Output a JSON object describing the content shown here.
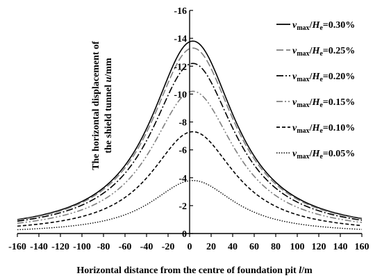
{
  "chart_data": {
    "type": "line",
    "xlabel_parts": [
      "Horizontal distance from the centre of foundation pit ",
      "l",
      "/m"
    ],
    "ylabel_line1": "The horizontal displacement of",
    "ylabel_line2_parts": [
      "the shield tunnel ",
      "u",
      "/mm"
    ],
    "xlim": [
      -160,
      160
    ],
    "ylim": [
      0,
      -16
    ],
    "x_ticks": [
      -160,
      -140,
      -120,
      -100,
      -80,
      -60,
      -40,
      -20,
      0,
      20,
      40,
      60,
      80,
      100,
      120,
      140,
      160
    ],
    "y_ticks": [
      0,
      -2,
      -4,
      -6,
      -8,
      -10,
      -12,
      -14,
      -16
    ],
    "legend_position": "top-right",
    "series": [
      {
        "name": "vmax/He=0.30%",
        "ratio": "0.30%",
        "peak": -13.8,
        "dash": "",
        "color": "#000000",
        "width": 1.6
      },
      {
        "name": "vmax/He=0.25%",
        "ratio": "0.25%",
        "peak": -13.3,
        "dash": "10,4",
        "color": "#7f7f7f",
        "width": 1.6
      },
      {
        "name": "vmax/He=0.20%",
        "ratio": "0.20%",
        "peak": -12.2,
        "dash": "10,3,2,3",
        "color": "#000000",
        "width": 1.6
      },
      {
        "name": "vmax/He=0.15%",
        "ratio": "0.15%",
        "peak": -10.2,
        "dash": "9,3,2,3,2,3",
        "color": "#7f7f7f",
        "width": 1.6
      },
      {
        "name": "vmax/He=0.10%",
        "ratio": "0.10%",
        "peak": -7.3,
        "dash": "5,3",
        "color": "#000000",
        "width": 1.6
      },
      {
        "name": "vmax/He=0.05%",
        "ratio": "0.05%",
        "peak": -3.8,
        "dash": "1.5,2",
        "color": "#000000",
        "width": 1.4
      }
    ]
  }
}
